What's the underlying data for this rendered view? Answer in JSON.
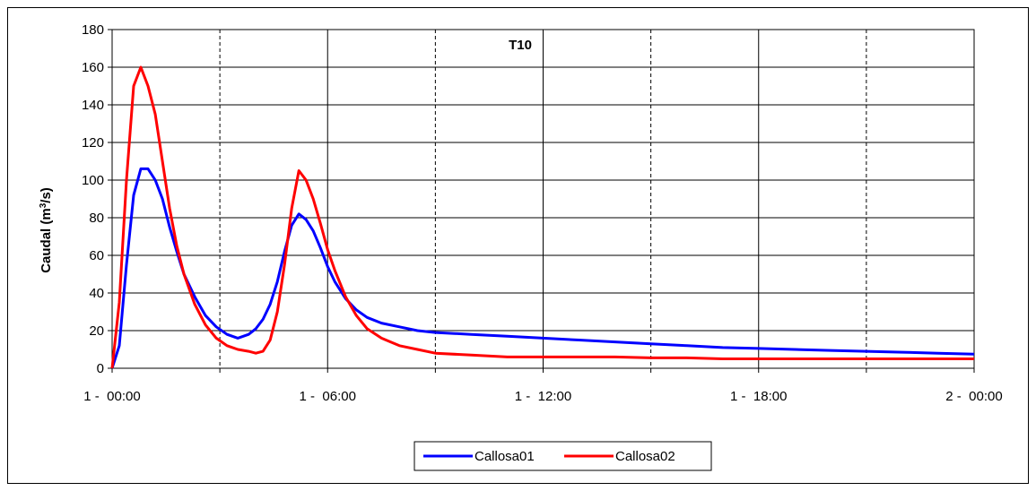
{
  "chart_data": {
    "type": "line",
    "title": "T10",
    "ylabel": "Caudal (m³/s)",
    "ylabel_parts": [
      "Caudal (m",
      "3",
      "/s)"
    ],
    "xlabel": "",
    "xlim_hours": [
      0,
      24
    ],
    "ylim": [
      0,
      180
    ],
    "yticks": [
      0,
      20,
      40,
      60,
      80,
      100,
      120,
      140,
      160,
      180
    ],
    "xtick_labels": [
      "1 -  00:00",
      "1 -  06:00",
      "1 -  12:00",
      "1 -  18:00",
      "2 -  00:00"
    ],
    "grid": {
      "horizontal": true,
      "vertical_solid_every_hours": 6,
      "vertical_dashed_every_hours": 3
    },
    "legend_position": "bottom",
    "series": [
      {
        "name": "Callosa01",
        "color": "#0000ff",
        "x_hours": [
          0,
          0.2,
          0.4,
          0.6,
          0.8,
          1.0,
          1.2,
          1.4,
          1.6,
          1.8,
          2.0,
          2.3,
          2.6,
          2.9,
          3.2,
          3.5,
          3.8,
          4.0,
          4.2,
          4.4,
          4.6,
          4.8,
          5.0,
          5.2,
          5.4,
          5.6,
          5.8,
          6.0,
          6.2,
          6.5,
          6.8,
          7.1,
          7.5,
          8.0,
          8.5,
          9.0,
          10.0,
          11.0,
          12.0,
          13.0,
          14.0,
          15.0,
          16.0,
          17.0,
          18.0,
          19.0,
          20.0,
          21.0,
          22.0,
          23.0,
          24.0
        ],
        "values": [
          0,
          12,
          55,
          92,
          106,
          106,
          100,
          90,
          75,
          62,
          50,
          38,
          28,
          22,
          18,
          16,
          18,
          21,
          26,
          34,
          46,
          62,
          76,
          82,
          79,
          73,
          64,
          54,
          46,
          37,
          31,
          27,
          24,
          22,
          20,
          19,
          18,
          17,
          16,
          15,
          14,
          13,
          12,
          11,
          10.5,
          10,
          9.5,
          9,
          8.5,
          8,
          7.5
        ]
      },
      {
        "name": "Callosa02",
        "color": "#ff0000",
        "x_hours": [
          0,
          0.2,
          0.4,
          0.6,
          0.8,
          1.0,
          1.2,
          1.4,
          1.6,
          1.8,
          2.0,
          2.3,
          2.6,
          2.9,
          3.2,
          3.5,
          3.8,
          4.0,
          4.2,
          4.4,
          4.6,
          4.8,
          5.0,
          5.2,
          5.4,
          5.6,
          5.8,
          6.0,
          6.2,
          6.5,
          6.8,
          7.1,
          7.5,
          8.0,
          8.5,
          9.0,
          10.0,
          11.0,
          12.0,
          13.0,
          14.0,
          15.0,
          16.0,
          17.0,
          18.0,
          19.0,
          20.0,
          21.0,
          22.0,
          23.0,
          24.0
        ],
        "values": [
          0,
          35,
          100,
          150,
          160,
          150,
          135,
          110,
          85,
          65,
          50,
          34,
          23,
          16,
          12,
          10,
          9,
          8,
          9,
          15,
          30,
          55,
          85,
          105,
          100,
          90,
          77,
          63,
          52,
          38,
          28,
          21,
          16,
          12,
          10,
          8,
          7,
          6,
          6,
          6,
          6,
          5.5,
          5.5,
          5,
          5,
          5,
          5,
          5,
          5,
          5,
          5
        ]
      }
    ]
  }
}
